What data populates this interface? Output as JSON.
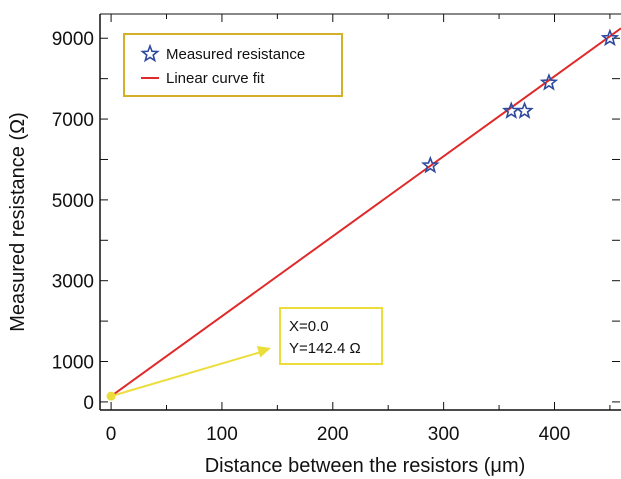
{
  "chart_data": {
    "type": "scatter",
    "xlabel": "Distance between the resistors (μm)",
    "ylabel": "Measured resistance (Ω)",
    "xlim": [
      -10,
      460
    ],
    "ylim": [
      -200,
      9600
    ],
    "x_ticks": [
      0,
      100,
      200,
      300,
      400
    ],
    "y_ticks": [
      0,
      1000,
      3000,
      5000,
      7000,
      9000
    ],
    "series": [
      {
        "name": "Measured resistance",
        "marker": "star",
        "color": "#2e4a9e",
        "x": [
          288,
          361,
          373,
          395,
          450
        ],
        "y": [
          5850,
          7200,
          7200,
          7900,
          9000
        ]
      },
      {
        "name": "Linear curve fit",
        "style": "line",
        "color": "#e02a2a",
        "intercept": 142.4,
        "slope": 19.79,
        "x_range": [
          0,
          460
        ]
      }
    ],
    "legend_position": "top-left",
    "legend_border_color": "#d4b028",
    "annotation": {
      "lines": [
        "X=0.0",
        "Y=142.4 Ω"
      ],
      "point": {
        "x": 0,
        "y": 142.4
      },
      "arrow_color": "#ecde3a",
      "box_border_color": "#ecde3a"
    }
  }
}
